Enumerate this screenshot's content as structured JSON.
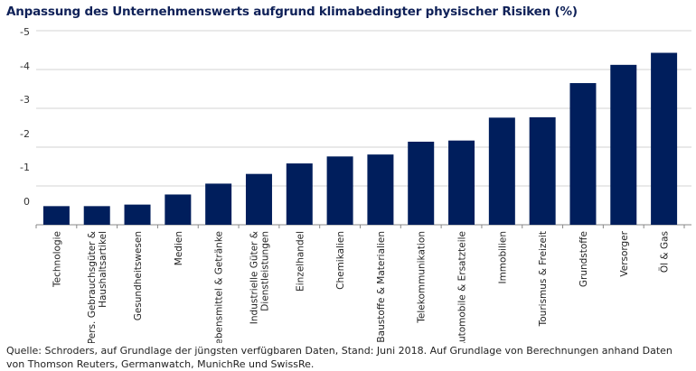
{
  "chart_data": {
    "type": "bar",
    "title": "Anpassung des Unternehmenswerts aufgrund klimabedingter physischer Risiken (%)",
    "categories": [
      "Technologie",
      "Pers. Gebrauchsgüter & Haushaltsartikel",
      "Gesundheitswesen",
      "Medien",
      "Lebensmittel & Getränke",
      "Industrielle Güter & Dienstleistungen",
      "Einzelhandel",
      "Chemikalien",
      "Baustoffe & Materialien",
      "Telekommunikation",
      "Automobile & Ersatzteile",
      "Immobilien",
      "Tourismus & Freizeit",
      "Grundstoffe",
      "Versorger",
      "Öl & Gas"
    ],
    "values": [
      -0.48,
      -0.48,
      -0.52,
      -0.78,
      -1.06,
      -1.31,
      -1.58,
      -1.76,
      -1.81,
      -2.14,
      -2.17,
      -2.76,
      -2.77,
      -3.65,
      -4.12,
      -4.43
    ],
    "yticks": [
      "-5",
      "-4",
      "-3",
      "-2",
      "-1",
      "0"
    ],
    "ylim": [
      0,
      -5
    ],
    "grid": true,
    "bar_color": "#001e5c"
  },
  "source": "Quelle: Schroders, auf Grundlage der jüngsten verfügbaren Daten, Stand: Juni 2018. Auf Grundlage von Berechnungen anhand Daten von Thomson Reuters, Germanwatch, MunichRe und SwissRe."
}
